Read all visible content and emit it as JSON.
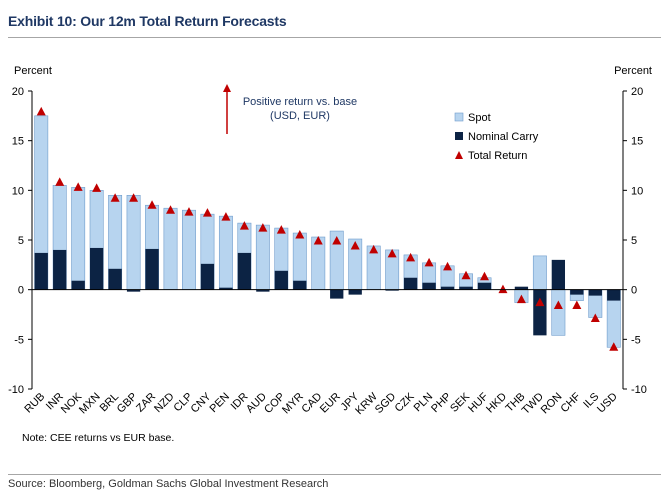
{
  "header": {
    "title": "Exhibit 10: Our 12m Total Return Forecasts"
  },
  "footer": {
    "source": "Source: Bloomberg, Goldman Sachs Global Investment Research"
  },
  "colors": {
    "spot": "#b7d4ef",
    "carry": "#0c2344",
    "total_return": "#c00000",
    "title": "#1f3864"
  },
  "chart_data": {
    "type": "bar",
    "title": "Exhibit 10: Our 12m Total Return Forecasts",
    "ylabel_left": "Percent",
    "ylabel_right": "Percent",
    "ylim": [
      -10,
      20
    ],
    "yticks": [
      -10,
      -5,
      0,
      5,
      10,
      15,
      20
    ],
    "grid": false,
    "legend_position": "top-right",
    "annotation": "Positive return vs. base\n(USD, EUR)",
    "note": "Note: CEE returns vs EUR base.",
    "categories": [
      "RUB",
      "INR",
      "NOK",
      "MXN",
      "BRL",
      "GBP",
      "ZAR",
      "NZD",
      "CLP",
      "CNY",
      "PEN",
      "IDR",
      "AUD",
      "COP",
      "MYR",
      "CAD",
      "EUR",
      "JPY",
      "KRW",
      "SGD",
      "CZK",
      "PLN",
      "PHP",
      "SEK",
      "HUF",
      "HKD",
      "THB",
      "TWD",
      "RON",
      "CHF",
      "ILS",
      "USD"
    ],
    "series": [
      {
        "name": "Spot",
        "type": "bar",
        "values": [
          17.5,
          10.5,
          10.3,
          10.0,
          9.5,
          9.5,
          8.5,
          8.2,
          8.0,
          7.6,
          7.4,
          6.7,
          6.5,
          6.2,
          5.7,
          5.3,
          5.9,
          5.1,
          4.4,
          4.0,
          3.5,
          2.7,
          2.4,
          1.6,
          1.2,
          0.0,
          -1.3,
          3.4,
          -4.6,
          -1.1,
          -2.8,
          -5.8
        ]
      },
      {
        "name": "Nominal Carry",
        "type": "bar",
        "values": [
          3.7,
          4.0,
          0.9,
          4.2,
          2.1,
          -0.2,
          4.1,
          0.0,
          0.0,
          2.6,
          0.2,
          3.7,
          -0.2,
          1.9,
          0.9,
          0.0,
          -0.9,
          -0.5,
          0.0,
          -0.1,
          1.2,
          0.7,
          0.3,
          0.3,
          0.7,
          0.0,
          0.3,
          -4.6,
          3.0,
          -0.5,
          -0.6,
          -1.1
        ]
      },
      {
        "name": "Total Return",
        "type": "marker",
        "values": [
          17.9,
          10.8,
          10.3,
          10.2,
          9.2,
          9.2,
          8.5,
          8.0,
          7.8,
          7.7,
          7.3,
          6.4,
          6.2,
          6.0,
          5.5,
          4.9,
          4.9,
          4.4,
          4.0,
          3.6,
          3.2,
          2.7,
          2.3,
          1.4,
          1.3,
          0.0,
          -1.0,
          -1.3,
          -1.6,
          -1.6,
          -2.9,
          -5.8
        ]
      }
    ]
  }
}
